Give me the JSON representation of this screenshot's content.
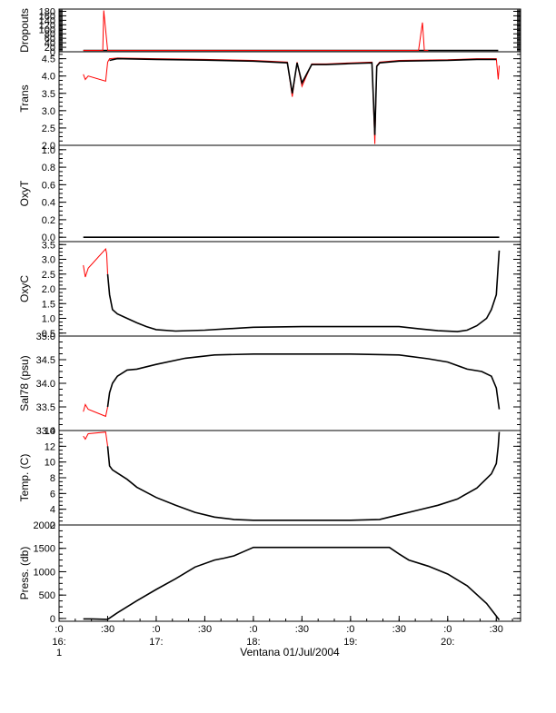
{
  "chart_data": {
    "type": "line",
    "title": "",
    "xlabel": "Ventana 01/Jul/2004",
    "x_units": "hours (time of day)",
    "x_range": [
      16.0,
      20.75
    ],
    "x_ticks": [
      {
        "t": 16.0,
        "label": ":0",
        "sub": "16:",
        "sub2": "1"
      },
      {
        "t": 16.5,
        "label": ":30"
      },
      {
        "t": 17.0,
        "label": ":0",
        "sub": "17:"
      },
      {
        "t": 17.5,
        "label": ":30"
      },
      {
        "t": 18.0,
        "label": ":0",
        "sub": "18:"
      },
      {
        "t": 18.5,
        "label": ":30"
      },
      {
        "t": 19.0,
        "label": ":0",
        "sub": "19:"
      },
      {
        "t": 19.5,
        "label": ":30"
      },
      {
        "t": 20.0,
        "label": ":0",
        "sub": "20:"
      },
      {
        "t": 20.5,
        "label": ":30"
      }
    ],
    "panels": [
      {
        "ylabel": "Dropouts",
        "ylim": [
          0,
          190
        ],
        "yticks": [
          {
            "v": 0,
            "l": "0"
          },
          {
            "v": 20,
            "l": "20"
          },
          {
            "v": 40,
            "l": "40"
          },
          {
            "v": 60,
            "l": "60"
          },
          {
            "v": 80,
            "l": "80"
          },
          {
            "v": 100,
            "l": "100"
          },
          {
            "v": 120,
            "l": "120"
          },
          {
            "v": 140,
            "l": "140"
          },
          {
            "v": 160,
            "l": "160"
          },
          {
            "v": 180,
            "l": "180"
          }
        ],
        "series": [
          {
            "color": "#000000",
            "x": [
              16.25,
              16.5,
              16.51,
              19.74,
              19.76,
              20.51,
              20.52
            ],
            "y": [
              2,
              2,
              0,
              0,
              2,
              2,
              0
            ]
          },
          {
            "color": "#ff0000",
            "x": [
              16.25,
              16.45,
              16.46,
              16.5,
              19.7,
              19.74,
              19.76,
              19.8
            ],
            "y": [
              0,
              0,
              190,
              0,
              0,
              130,
              0,
              0
            ]
          }
        ]
      },
      {
        "ylabel": "Trans",
        "ylim": [
          2.0,
          4.7
        ],
        "yticks": [
          {
            "v": 2.0,
            "l": "2.0"
          },
          {
            "v": 2.5,
            "l": "2.5"
          },
          {
            "v": 3.0,
            "l": "3.0"
          },
          {
            "v": 3.5,
            "l": "3.5"
          },
          {
            "v": 4.0,
            "l": "4.0"
          },
          {
            "v": 4.5,
            "l": "4.5"
          }
        ],
        "series": [
          {
            "color": "#ff0000",
            "x": [
              16.25,
              16.27,
              16.3,
              16.48,
              16.5,
              16.52,
              16.6,
              17.0,
              17.5,
              18.0,
              18.35,
              18.4,
              18.45,
              18.5,
              18.6,
              18.75,
              19.0,
              19.22,
              19.25,
              19.27,
              19.3,
              19.5,
              20.0,
              20.3,
              20.5,
              20.52,
              20.53
            ],
            "y": [
              4.05,
              3.9,
              4.0,
              3.85,
              4.4,
              4.5,
              4.52,
              4.5,
              4.48,
              4.45,
              4.4,
              3.4,
              4.4,
              3.7,
              4.35,
              4.35,
              4.38,
              4.4,
              2.0,
              4.3,
              4.4,
              4.45,
              4.47,
              4.5,
              4.5,
              3.9,
              4.3
            ]
          },
          {
            "color": "#000000",
            "x": [
              16.52,
              16.6,
              17.0,
              17.5,
              18.0,
              18.35,
              18.4,
              18.45,
              18.5,
              18.6,
              18.75,
              19.0,
              19.22,
              19.25,
              19.27,
              19.3,
              19.5,
              20.0,
              20.3,
              20.5
            ],
            "y": [
              4.45,
              4.5,
              4.48,
              4.46,
              4.43,
              4.38,
              3.5,
              4.38,
              3.8,
              4.33,
              4.33,
              4.36,
              4.38,
              2.3,
              4.28,
              4.38,
              4.43,
              4.45,
              4.48,
              4.48
            ]
          }
        ]
      },
      {
        "ylabel": "OxyT",
        "ylim": [
          -0.05,
          1.05
        ],
        "yticks": [
          {
            "v": 0.0,
            "l": "0.0"
          },
          {
            "v": 0.2,
            "l": "0.2"
          },
          {
            "v": 0.4,
            "l": "0.4"
          },
          {
            "v": 0.6,
            "l": "0.6"
          },
          {
            "v": 0.8,
            "l": "0.8"
          },
          {
            "v": 1.0,
            "l": "1.0"
          }
        ],
        "series": [
          {
            "color": "#000000",
            "x": [
              16.25,
              16.33,
              16.5,
              20.53
            ],
            "y": [
              0.0,
              0.0,
              0.0,
              0.0
            ]
          }
        ]
      },
      {
        "ylabel": "OxyC",
        "ylim": [
          0.4,
          3.6
        ],
        "yticks": [
          {
            "v": 0.5,
            "l": "0.5"
          },
          {
            "v": 1.0,
            "l": "1.0"
          },
          {
            "v": 1.5,
            "l": "1.5"
          },
          {
            "v": 2.0,
            "l": "2.0"
          },
          {
            "v": 2.5,
            "l": "2.5"
          },
          {
            "v": 3.0,
            "l": "3.0"
          },
          {
            "v": 3.5,
            "l": "3.5"
          }
        ],
        "series": [
          {
            "color": "#ff0000",
            "x": [
              16.25,
              16.27,
              16.3,
              16.48,
              16.49,
              16.5
            ],
            "y": [
              2.8,
              2.4,
              2.7,
              3.35,
              3.2,
              2.5
            ]
          },
          {
            "color": "#000000",
            "x": [
              16.5,
              16.52,
              16.55,
              16.6,
              16.7,
              16.8,
              16.9,
              17.0,
              17.2,
              17.5,
              18.0,
              18.5,
              19.0,
              19.5,
              19.7,
              19.9,
              20.1,
              20.2,
              20.3,
              20.4,
              20.45,
              20.5,
              20.52,
              20.53
            ],
            "y": [
              2.5,
              1.8,
              1.3,
              1.15,
              1.0,
              0.85,
              0.72,
              0.62,
              0.57,
              0.6,
              0.7,
              0.72,
              0.72,
              0.72,
              0.65,
              0.58,
              0.55,
              0.6,
              0.75,
              1.0,
              1.3,
              1.8,
              2.8,
              3.3
            ]
          }
        ]
      },
      {
        "ylabel": "Sal78 (psu)",
        "ylim": [
          33.0,
          35.0
        ],
        "yticks": [
          {
            "v": 33.0,
            "l": "33.0"
          },
          {
            "v": 33.5,
            "l": "33.5"
          },
          {
            "v": 34.0,
            "l": "34.0"
          },
          {
            "v": 34.5,
            "l": "34.5"
          },
          {
            "v": 35.0,
            "l": "35.0"
          }
        ],
        "series": [
          {
            "color": "#ff0000",
            "x": [
              16.25,
              16.27,
              16.3,
              16.48,
              16.5
            ],
            "y": [
              33.4,
              33.55,
              33.45,
              33.3,
              33.5
            ]
          },
          {
            "color": "#000000",
            "x": [
              16.5,
              16.52,
              16.55,
              16.6,
              16.7,
              16.8,
              17.0,
              17.3,
              17.6,
              18.0,
              18.5,
              19.0,
              19.5,
              19.8,
              20.0,
              20.2,
              20.35,
              20.45,
              20.5,
              20.52,
              20.53
            ],
            "y": [
              33.5,
              33.8,
              34.0,
              34.15,
              34.28,
              34.3,
              34.4,
              34.53,
              34.6,
              34.62,
              34.62,
              34.62,
              34.6,
              34.52,
              34.45,
              34.3,
              34.25,
              34.15,
              33.9,
              33.6,
              33.45
            ]
          }
        ]
      },
      {
        "ylabel": "Temp. (C)",
        "ylim": [
          2,
          14
        ],
        "yticks": [
          {
            "v": 2,
            "l": "2"
          },
          {
            "v": 4,
            "l": "4"
          },
          {
            "v": 6,
            "l": "6"
          },
          {
            "v": 8,
            "l": "8"
          },
          {
            "v": 10,
            "l": "10"
          },
          {
            "v": 12,
            "l": "12"
          },
          {
            "v": 14,
            "l": "14"
          }
        ],
        "series": [
          {
            "color": "#ff0000",
            "x": [
              16.25,
              16.27,
              16.3,
              16.48,
              16.5
            ],
            "y": [
              13.3,
              12.9,
              13.6,
              13.8,
              12.0
            ]
          },
          {
            "color": "#000000",
            "x": [
              16.5,
              16.52,
              16.55,
              16.6,
              16.7,
              16.8,
              17.0,
              17.2,
              17.4,
              17.6,
              17.8,
              18.0,
              18.5,
              19.0,
              19.3,
              19.5,
              19.7,
              19.9,
              20.1,
              20.3,
              20.45,
              20.5,
              20.52,
              20.53
            ],
            "y": [
              12.0,
              9.5,
              9.0,
              8.6,
              7.8,
              6.8,
              5.5,
              4.5,
              3.6,
              3.0,
              2.7,
              2.6,
              2.6,
              2.6,
              2.7,
              3.3,
              3.9,
              4.5,
              5.3,
              6.7,
              8.5,
              9.8,
              12.0,
              14.0
            ]
          }
        ]
      },
      {
        "ylabel": "Press. (db)",
        "ylim": [
          -60,
          2000
        ],
        "yticks": [
          {
            "v": 0,
            "l": "0"
          },
          {
            "v": 500,
            "l": "500"
          },
          {
            "v": 1000,
            "l": "1000"
          },
          {
            "v": 1500,
            "l": "1500"
          },
          {
            "v": 2000,
            "l": "2000"
          }
        ],
        "series": [
          {
            "color": "#000000",
            "x": [
              16.25,
              16.33,
              16.5,
              16.6,
              16.8,
              17.0,
              17.2,
              17.4,
              17.6,
              17.7,
              17.8,
              17.9,
              18.0,
              18.5,
              19.0,
              19.4,
              19.5,
              19.6,
              19.8,
              20.0,
              20.2,
              20.4,
              20.5,
              20.53
            ],
            "y": [
              -10,
              -10,
              -20,
              120,
              380,
              620,
              850,
              1100,
              1250,
              1290,
              1340,
              1430,
              1520,
              1520,
              1520,
              1520,
              1380,
              1250,
              1120,
              950,
              700,
              320,
              50,
              -40
            ]
          }
        ]
      }
    ]
  }
}
